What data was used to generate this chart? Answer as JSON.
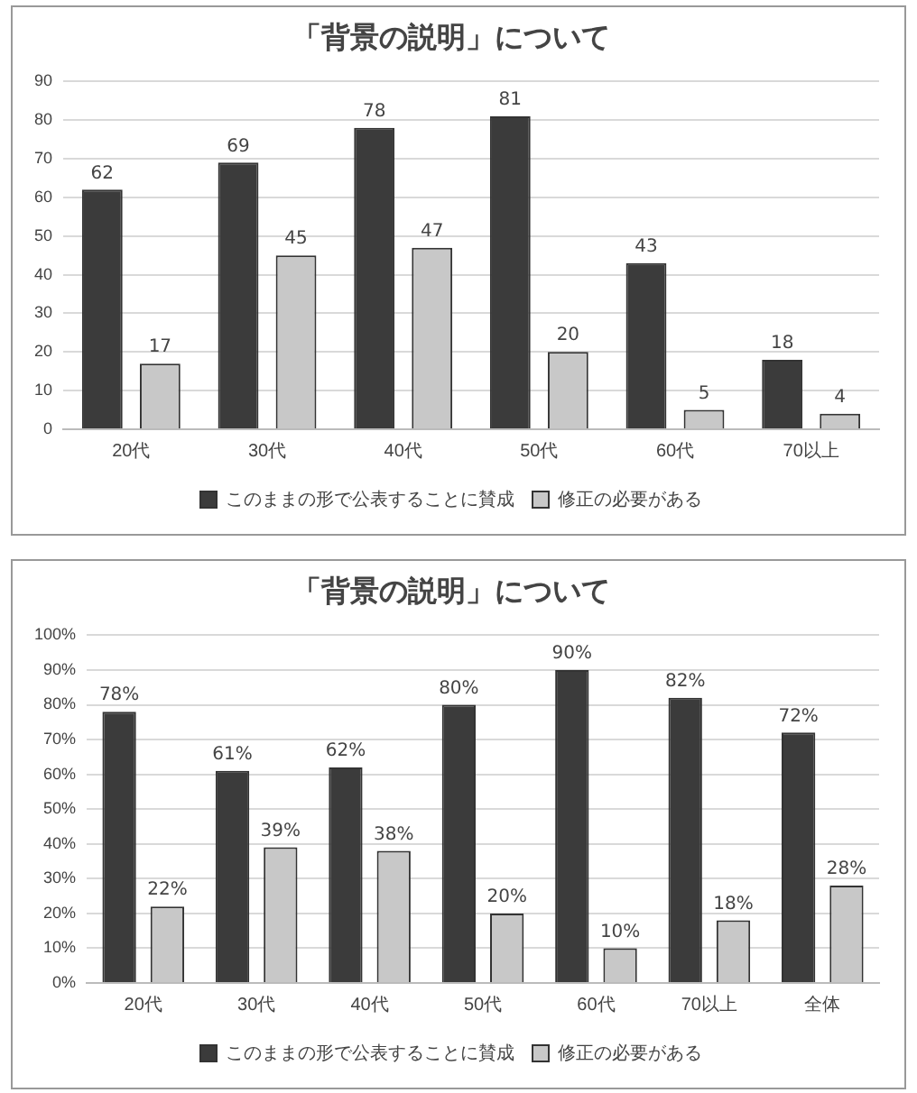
{
  "chart_data": [
    {
      "type": "bar",
      "title": "「背景の説明」について",
      "categories": [
        "20代",
        "30代",
        "40代",
        "50代",
        "60代",
        "70以上"
      ],
      "series": [
        {
          "name": "このままの形で公表することに賛成",
          "color": "#3b3b3b",
          "values": [
            62,
            69,
            78,
            81,
            43,
            18
          ]
        },
        {
          "name": "修正の必要がある",
          "color": "#c8c8c8",
          "values": [
            17,
            45,
            47,
            20,
            5,
            4
          ]
        }
      ],
      "ylim": [
        0,
        90
      ],
      "yticks": [
        0,
        10,
        20,
        30,
        40,
        50,
        60,
        70,
        80,
        90
      ],
      "grid": "y",
      "legend": "bottom",
      "data_labels": true
    },
    {
      "type": "bar",
      "title": "「背景の説明」について",
      "categories": [
        "20代",
        "30代",
        "40代",
        "50代",
        "60代",
        "70以上",
        "全体"
      ],
      "series": [
        {
          "name": "このままの形で公表することに賛成",
          "color": "#3b3b3b",
          "values": [
            78,
            61,
            62,
            80,
            90,
            82,
            72
          ],
          "value_labels": [
            "78%",
            "61%",
            "62%",
            "80%",
            "90%",
            "82%",
            "72%"
          ]
        },
        {
          "name": "修正の必要がある",
          "color": "#c8c8c8",
          "values": [
            22,
            39,
            38,
            20,
            10,
            18,
            28
          ],
          "value_labels": [
            "22%",
            "39%",
            "38%",
            "20%",
            "10%",
            "18%",
            "28%"
          ]
        }
      ],
      "ylim": [
        0,
        100
      ],
      "yticks": [
        {
          "value": 0,
          "label": "0%"
        },
        {
          "value": 10,
          "label": "10%"
        },
        {
          "value": 20,
          "label": "20%"
        },
        {
          "value": 30,
          "label": "30%"
        },
        {
          "value": 40,
          "label": "40%"
        },
        {
          "value": 50,
          "label": "50%"
        },
        {
          "value": 60,
          "label": "60%"
        },
        {
          "value": 70,
          "label": "70%"
        },
        {
          "value": 80,
          "label": "80%"
        },
        {
          "value": 90,
          "label": "90%"
        },
        {
          "value": 100,
          "label": "100%"
        }
      ],
      "grid": "y",
      "legend": "bottom"
    }
  ]
}
